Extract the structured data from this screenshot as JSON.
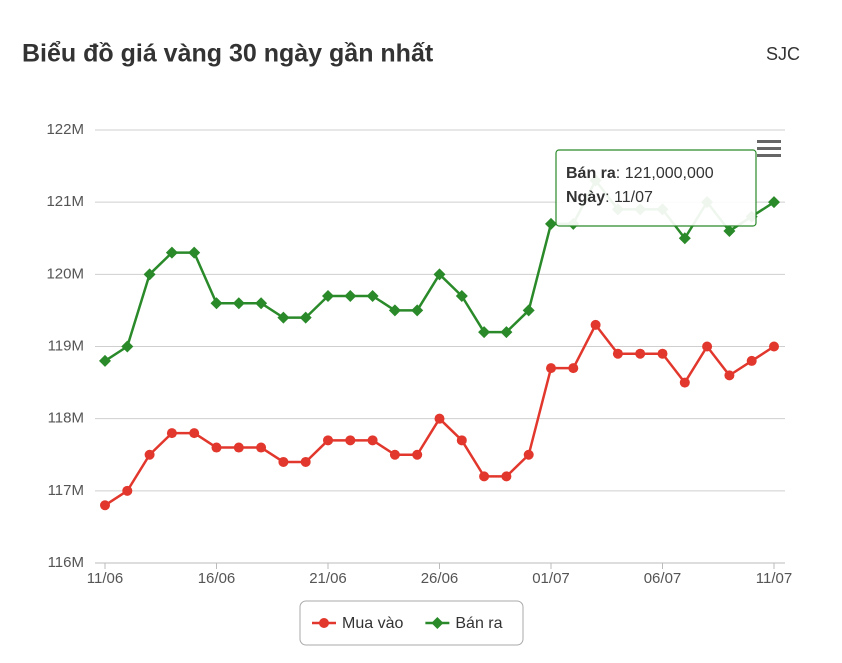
{
  "chart_data": {
    "type": "line",
    "title": "Biểu đồ giá vàng 30 ngày gần nhất",
    "subtitle": "SJC",
    "categories": [
      "11/06",
      null,
      null,
      null,
      null,
      "16/06",
      null,
      null,
      null,
      null,
      "21/06",
      null,
      null,
      null,
      null,
      "26/06",
      null,
      null,
      null,
      null,
      "01/07",
      null,
      null,
      null,
      null,
      "06/07",
      null,
      null,
      null,
      null,
      "11/07"
    ],
    "series": [
      {
        "name": "Mua vào",
        "color": "#e2372c",
        "marker": "circle",
        "values": [
          116800000,
          117000000,
          117500000,
          117800000,
          117800000,
          117600000,
          117600000,
          117600000,
          117400000,
          117400000,
          117700000,
          117700000,
          117700000,
          117500000,
          117500000,
          118000000,
          117700000,
          117200000,
          117200000,
          117500000,
          118700000,
          118700000,
          119300000,
          118900000,
          118900000,
          118900000,
          118500000,
          119000000,
          118600000,
          118800000,
          119000000
        ]
      },
      {
        "name": "Bán ra",
        "color": "#2a8a2a",
        "marker": "diamond",
        "values": [
          118800000,
          119000000,
          120000000,
          120300000,
          120300000,
          119600000,
          119600000,
          119600000,
          119400000,
          119400000,
          119700000,
          119700000,
          119700000,
          119500000,
          119500000,
          120000000,
          119700000,
          119200000,
          119200000,
          119500000,
          120700000,
          120700000,
          121300000,
          120900000,
          120900000,
          120900000,
          120500000,
          121000000,
          120600000,
          120800000,
          121000000
        ]
      }
    ],
    "ylim": [
      116000000,
      122000000
    ],
    "yticks": [
      {
        "value": 116000000,
        "label": "116M"
      },
      {
        "value": 117000000,
        "label": "117M"
      },
      {
        "value": 118000000,
        "label": "118M"
      },
      {
        "value": 119000000,
        "label": "119M"
      },
      {
        "value": 120000000,
        "label": "120M"
      },
      {
        "value": 121000000,
        "label": "121M"
      },
      {
        "value": 122000000,
        "label": "122M"
      }
    ],
    "grid": true,
    "legend": "bottom",
    "tooltip": {
      "series": 1,
      "index": 30,
      "separator": ": ",
      "value_label": "121,000,000",
      "date_label": "Ngày"
    }
  }
}
